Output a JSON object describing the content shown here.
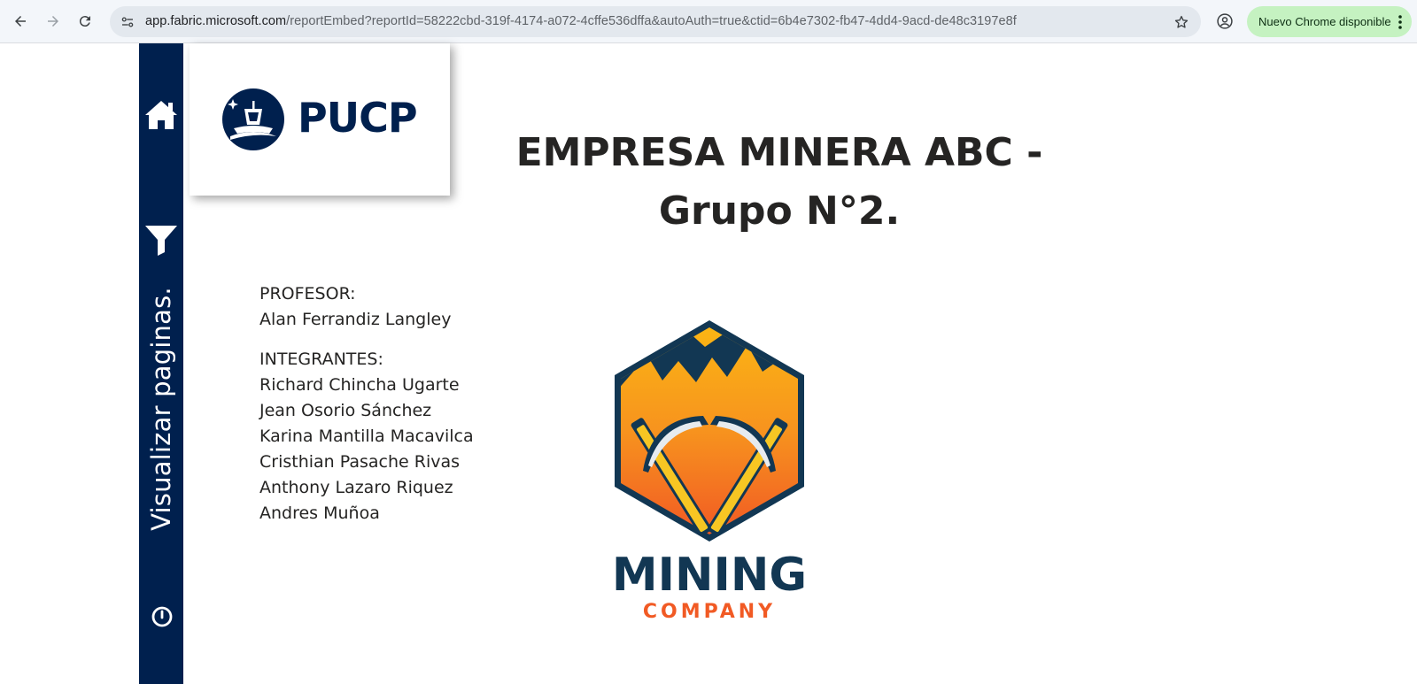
{
  "browser": {
    "url_host": "app.fabric.microsoft.com",
    "url_path": "/reportEmbed?reportId=58222cbd-319f-4174-a072-4cffe536dffa&autoAuth=true&ctid=6b4e7302-fb47-4dd4-9acd-de48c3197e8f",
    "update_label": "Nuevo Chrome disponible"
  },
  "sidebar": {
    "nav_label": "Visualizar paginas."
  },
  "logo": {
    "brand": "PUCP"
  },
  "report": {
    "title_line1": "EMPRESA MINERA ABC -",
    "title_line2": "Grupo N°2.",
    "professor_heading": "PROFESOR:",
    "professor_name": "Alan Ferrandiz Langley",
    "members_heading": "INTEGRANTES:",
    "members": [
      "Richard Chincha Ugarte",
      "Jean Osorio Sánchez",
      "Karina Mantilla Macavilca",
      "Cristhian Pasache Rivas",
      "Anthony Lazaro Riquez",
      "Andres Muñoa"
    ]
  },
  "mining_logo": {
    "word1": "MINING",
    "word2": "COMPANY"
  },
  "colors": {
    "navy": "#00204e",
    "orange": "#f7931e",
    "text": "#252423"
  },
  "icons": [
    "back-icon",
    "forward-icon",
    "reload-icon",
    "site-settings-icon",
    "bookmark-star-icon",
    "profile-icon",
    "more-vert-icon",
    "home-icon",
    "filter-icon",
    "power-icon"
  ]
}
